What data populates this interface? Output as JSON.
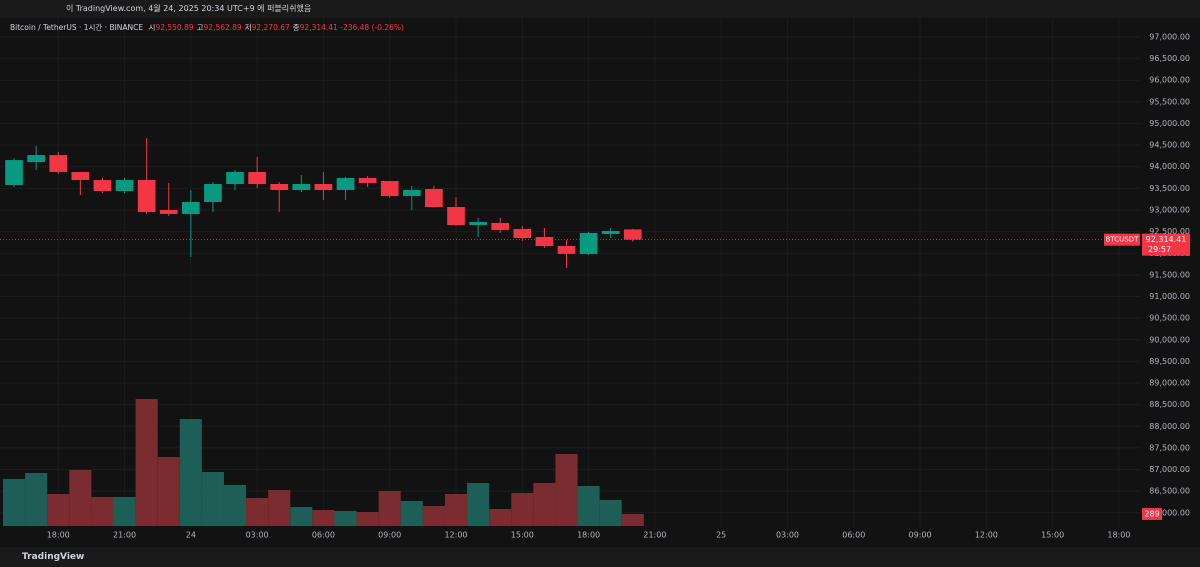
{
  "header": "이 TradingView.com, 4월 24, 2025 20:34 UTC+9 에 퍼블리쉬했음",
  "footer": "TradingView",
  "chart_data": {
    "type": "candlestick",
    "title": "Bitcoin / TetherUS · 1시간 · BINANCE",
    "legend": [
      {
        "label": "시",
        "value": "92,550.89"
      },
      {
        "label": "고",
        "value": "92,562.89"
      },
      {
        "label": "저",
        "value": "92,270.67"
      },
      {
        "label": "종",
        "value": "92,314.41"
      }
    ],
    "change": "-236.48 (-0.26%)",
    "symbol": "BTCUSDT",
    "countdown": "29:57",
    "up_color": "#089981",
    "down_color": "#f23645",
    "categories": [
      null,
      null,
      "18:00",
      null,
      null,
      "21:00",
      null,
      null,
      "24",
      null,
      null,
      "03:00",
      null,
      null,
      "06:00",
      null,
      null,
      "09:00",
      null,
      null,
      "12:00",
      null,
      null,
      "15:00",
      null,
      null,
      "18:00",
      null,
      null,
      "21:00",
      null,
      null,
      "25",
      null,
      null,
      "03:00",
      null,
      null,
      "06:00",
      null,
      null,
      "09:00",
      null,
      null,
      "12:00",
      null,
      null,
      "15:00",
      null,
      null,
      "18:00"
    ],
    "open": [
      93578,
      94109,
      94270,
      93878,
      93693,
      93439,
      93693,
      93000,
      92908,
      93185,
      93601,
      93878,
      93601,
      93462,
      93601,
      93462,
      93740,
      93670,
      93323,
      93485,
      93069,
      92653,
      92700,
      92561,
      92376,
      92168,
      91984,
      92446,
      92550.89,
      null,
      null,
      null,
      null,
      null,
      null,
      null,
      null,
      null,
      null,
      null,
      null,
      null,
      null,
      null,
      null,
      null,
      null,
      null,
      null,
      null,
      null
    ],
    "high": [
      94200,
      94478,
      94340,
      93878,
      93740,
      93740,
      94663,
      93624,
      93462,
      93647,
      93924,
      94224,
      93647,
      93809,
      93878,
      93763,
      93786,
      93670,
      93554,
      93554,
      93300,
      92815,
      92815,
      92630,
      92584,
      92307,
      92492,
      92584,
      92562.89,
      null,
      null,
      null,
      null,
      null,
      null,
      null,
      null,
      null,
      null,
      null,
      null,
      null,
      null,
      null,
      null,
      null,
      null,
      null,
      null,
      null,
      null
    ],
    "low": [
      93530,
      93924,
      93832,
      93346,
      93393,
      93393,
      92908,
      92862,
      91914,
      92954,
      93462,
      93508,
      92954,
      93416,
      93231,
      93231,
      93531,
      93277,
      93000,
      93046,
      92630,
      92376,
      92469,
      92284,
      92122,
      91660,
      91961,
      92353,
      92270.67,
      null,
      null,
      null,
      null,
      null,
      null,
      null,
      null,
      null,
      null,
      null,
      null,
      null,
      null,
      null,
      null,
      null,
      null,
      null,
      null,
      null,
      null
    ],
    "close": [
      94155,
      94270,
      93878,
      93693,
      93439,
      93693,
      92954,
      92908,
      93185,
      93601,
      93878,
      93601,
      93462,
      93601,
      93462,
      93740,
      93624,
      93323,
      93462,
      93069,
      92653,
      92723,
      92538,
      92353,
      92168,
      91984,
      92469,
      92515,
      92314.41,
      null,
      null,
      null,
      null,
      null,
      null,
      null,
      null,
      null,
      null,
      null,
      null,
      null,
      null,
      null,
      null,
      null,
      null,
      null,
      null,
      null,
      null
    ],
    "volume": {
      "values": [
        1128,
        1272,
        768,
        1344,
        696,
        696,
        3048,
        1656,
        2568,
        1296,
        984,
        672,
        864,
        456,
        384,
        360,
        336,
        840,
        600,
        480,
        768,
        1032,
        408,
        792,
        1032,
        1728,
        960,
        624,
        289,
        null,
        null,
        null,
        null,
        null,
        null,
        null,
        null,
        null,
        null,
        null,
        null,
        null,
        null,
        null,
        null,
        null,
        null,
        null,
        null,
        null,
        null
      ],
      "up_color": "#1d5e57",
      "down_color": "#7a2c30",
      "ylim": [
        0,
        4800
      ]
    },
    "ylim": [
      85255,
      97439
    ],
    "yticks": [
      {
        "value": 86000,
        "label": "86,000.00"
      },
      {
        "value": 86500,
        "label": "86,500.00"
      },
      {
        "value": 87000,
        "label": "87,000.00"
      },
      {
        "value": 87500,
        "label": "87,500.00"
      },
      {
        "value": 88000,
        "label": "88,000.00"
      },
      {
        "value": 88500,
        "label": "88,500.00"
      },
      {
        "value": 89000,
        "label": "89,000.00"
      },
      {
        "value": 89500,
        "label": "89,500.00"
      },
      {
        "value": 90000,
        "label": "90,000.00"
      },
      {
        "value": 90500,
        "label": "90,500.00"
      },
      {
        "value": 91000,
        "label": "91,000.00"
      },
      {
        "value": 91500,
        "label": "91,500.00"
      },
      {
        "value": 92000,
        "label": "92,000.00"
      },
      {
        "value": 92500,
        "label": "92,500.00"
      },
      {
        "value": 93000,
        "label": "93,000.00"
      },
      {
        "value": 93500,
        "label": "93,500.00"
      },
      {
        "value": 94000,
        "label": "94,000.00"
      },
      {
        "value": 94500,
        "label": "94,500.00"
      },
      {
        "value": 95000,
        "label": "95,000.00"
      },
      {
        "value": 95500,
        "label": "95,500.00"
      },
      {
        "value": 96000,
        "label": "96,000.00"
      },
      {
        "value": 96500,
        "label": "96,500.00"
      },
      {
        "value": 97000,
        "label": "97,000.00"
      }
    ],
    "grid": true
  }
}
